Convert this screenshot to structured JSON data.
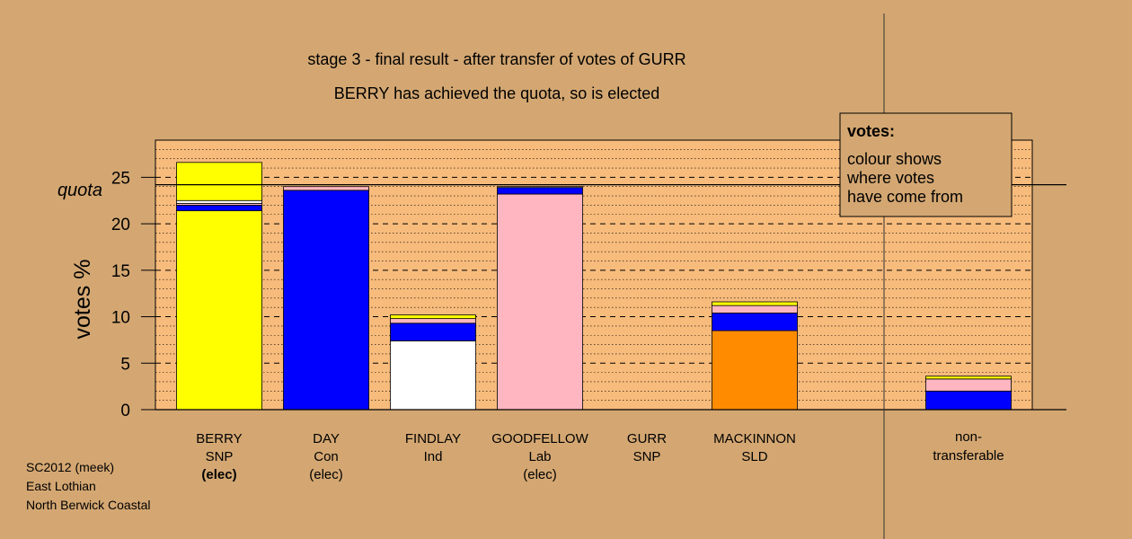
{
  "chart_data": {
    "type": "bar",
    "title": "stage 3 - final result - after transfer of votes of GURR",
    "subtitle": "BERRY has achieved the quota, so is elected",
    "ylabel": "votes %",
    "ylim": [
      0,
      29
    ],
    "yticks": [
      0,
      5,
      10,
      15,
      20,
      25
    ],
    "quota": 24.2,
    "quota_label": "quota",
    "stacking": "stacked",
    "grid": true,
    "legend": {
      "title": "votes:",
      "lines": [
        "colour shows",
        "where votes",
        "have come from"
      ],
      "position": "top-right"
    },
    "candidates": [
      {
        "name": "BERRY",
        "party": "SNP",
        "status": "(elec)",
        "status_bold": true,
        "segments": [
          {
            "value": 21.4,
            "color": "#ffff00"
          },
          {
            "value": 0.6,
            "color": "#0000ff"
          },
          {
            "value": 0.2,
            "color": "#ffb6c1"
          },
          {
            "value": 0.3,
            "color": "#ffffff"
          },
          {
            "value": 4.1,
            "color": "#ffff00"
          }
        ]
      },
      {
        "name": "DAY",
        "party": "Con",
        "status": "(elec)",
        "status_bold": false,
        "segments": [
          {
            "value": 23.6,
            "color": "#0000ff"
          },
          {
            "value": 0.4,
            "color": "#ffb6c1"
          }
        ]
      },
      {
        "name": "FINDLAY",
        "party": "Ind",
        "status": "",
        "status_bold": false,
        "segments": [
          {
            "value": 7.4,
            "color": "#ffffff"
          },
          {
            "value": 1.9,
            "color": "#0000ff"
          },
          {
            "value": 0.5,
            "color": "#ffb6c1"
          },
          {
            "value": 0.4,
            "color": "#ffff00"
          }
        ]
      },
      {
        "name": "GOODFELLOW",
        "party": "Lab",
        "status": "(elec)",
        "status_bold": false,
        "segments": [
          {
            "value": 23.2,
            "color": "#ffb6c1"
          },
          {
            "value": 0.7,
            "color": "#0000ff"
          },
          {
            "value": 0.1,
            "color": "#ffffff"
          }
        ]
      },
      {
        "name": "GURR",
        "party": "SNP",
        "status": "",
        "status_bold": false,
        "segments": []
      },
      {
        "name": "MACKINNON",
        "party": "SLD",
        "status": "",
        "status_bold": false,
        "segments": [
          {
            "value": 8.5,
            "color": "#ff8c00"
          },
          {
            "value": 1.9,
            "color": "#0000ff"
          },
          {
            "value": 0.8,
            "color": "#ffb6c1"
          },
          {
            "value": 0.4,
            "color": "#ffff00"
          }
        ]
      }
    ],
    "nontransferable": {
      "label_lines": [
        "non-",
        "transferable"
      ],
      "segments": [
        {
          "value": 2.0,
          "color": "#0000ff"
        },
        {
          "value": 1.3,
          "color": "#ffb6c1"
        },
        {
          "value": 0.3,
          "color": "#ffff00"
        }
      ]
    },
    "footer": [
      "SC2012 (meek)",
      "East Lothian",
      "North Berwick Coastal"
    ]
  }
}
